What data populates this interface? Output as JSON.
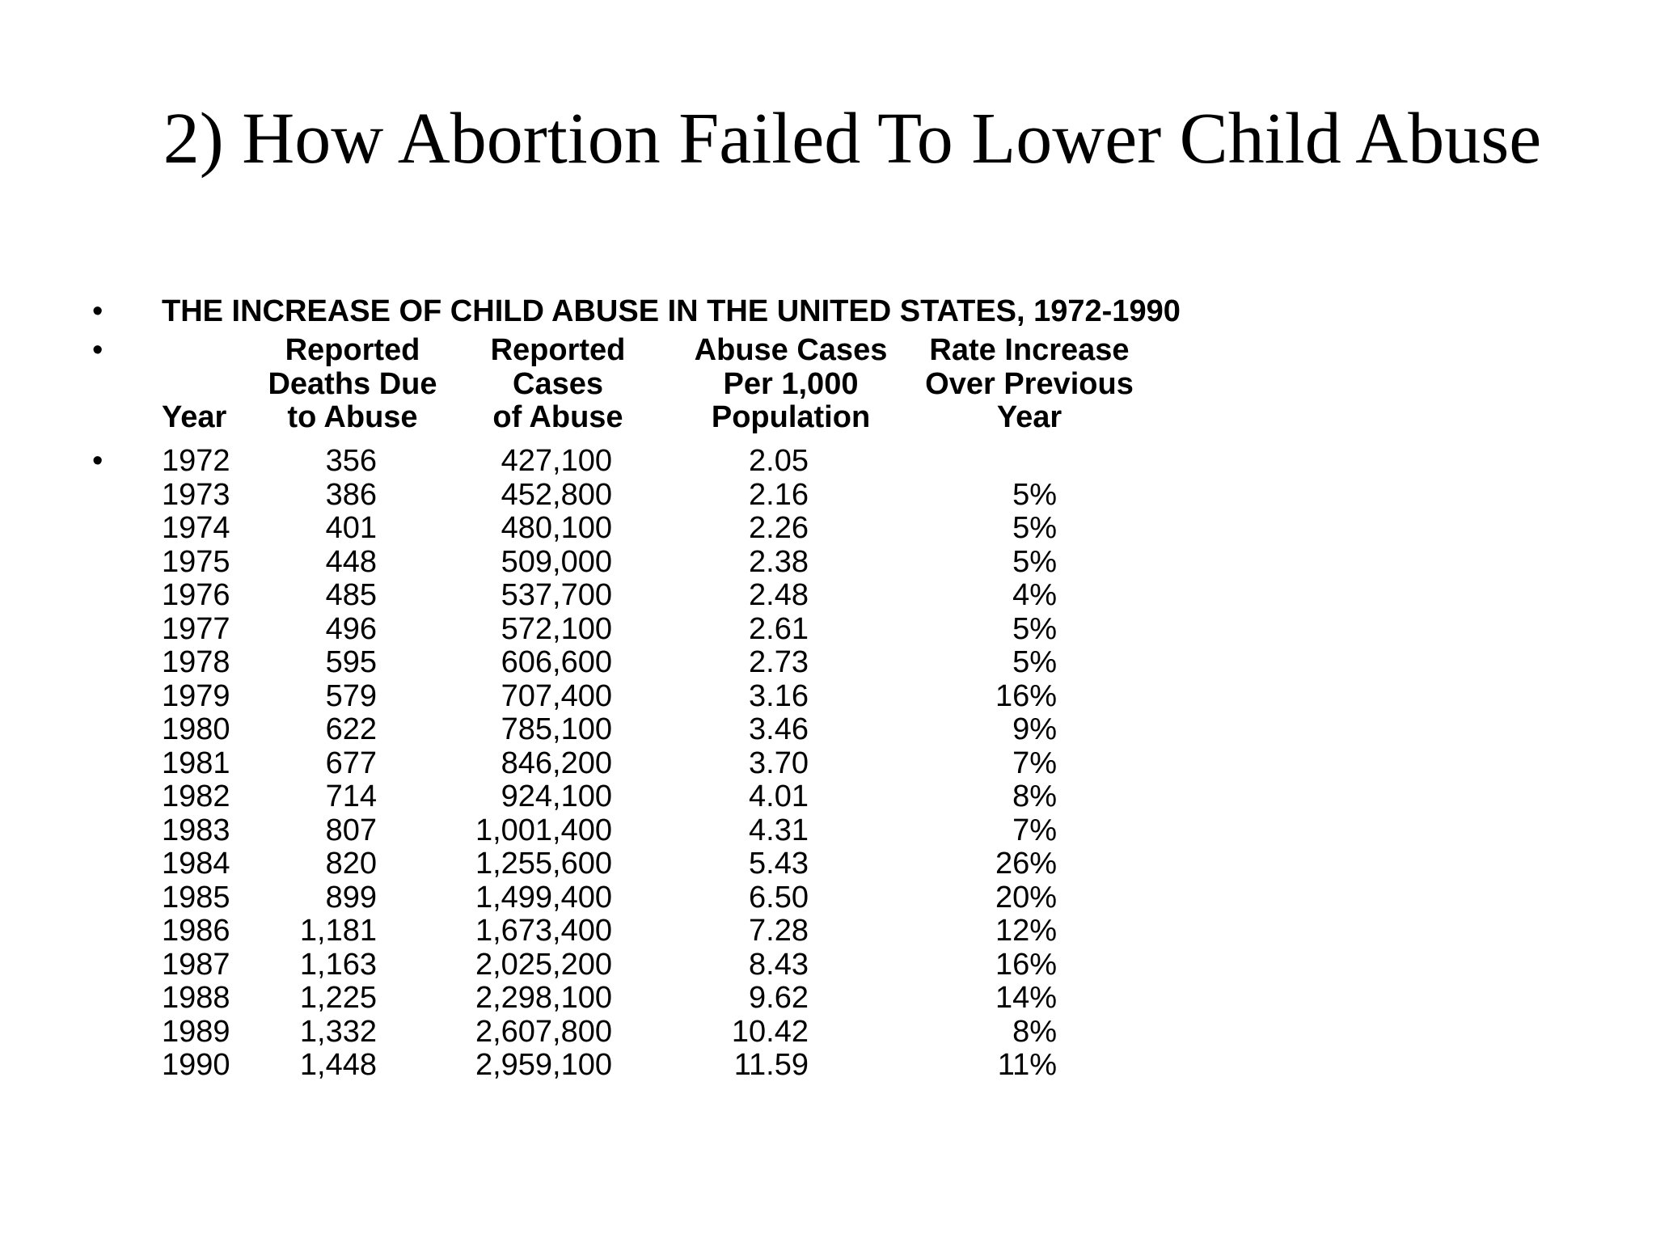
{
  "title": "2) How Abortion Failed To Lower Child Abuse",
  "bullet_char": "•",
  "table": {
    "heading": "THE INCREASE OF CHILD ABUSE IN THE UNITED STATES, 1972-1990",
    "column_headers": {
      "year": "Year",
      "deaths": {
        "line1": "Reported",
        "line2": "Deaths Due",
        "line3": "to Abuse"
      },
      "cases": {
        "line1": "Reported",
        "line2": "Cases",
        "line3": "of Abuse"
      },
      "per_1000": {
        "line1": "Abuse Cases",
        "line2": "Per 1,000",
        "line3": "Population"
      },
      "rate": {
        "line1": "Rate Increase",
        "line2": "Over Previous",
        "line3": "Year"
      }
    },
    "rows": [
      [
        "1972",
        "356",
        "427,100",
        "2.05",
        ""
      ],
      [
        "1973",
        "386",
        "452,800",
        "2.16",
        "5%"
      ],
      [
        "1974",
        "401",
        "480,100",
        "2.26",
        "5%"
      ],
      [
        "1975",
        "448",
        "509,000",
        "2.38",
        "5%"
      ],
      [
        "1976",
        "485",
        "537,700",
        "2.48",
        "4%"
      ],
      [
        "1977",
        "496",
        "572,100",
        "2.61",
        "5%"
      ],
      [
        "1978",
        "595",
        "606,600",
        "2.73",
        "5%"
      ],
      [
        "1979",
        "579",
        "707,400",
        "3.16",
        "16%"
      ],
      [
        "1980",
        "622",
        "785,100",
        "3.46",
        "9%"
      ],
      [
        "1981",
        "677",
        "846,200",
        "3.70",
        "7%"
      ],
      [
        "1982",
        "714",
        "924,100",
        "4.01",
        "8%"
      ],
      [
        "1983",
        "807",
        "1,001,400",
        "4.31",
        "7%"
      ],
      [
        "1984",
        "820",
        "1,255,600",
        "5.43",
        "26%"
      ],
      [
        "1985",
        "899",
        "1,499,400",
        "6.50",
        "20%"
      ],
      [
        "1986",
        "1,181",
        "1,673,400",
        "7.28",
        "12%"
      ],
      [
        "1987",
        "1,163",
        "2,025,200",
        "8.43",
        "16%"
      ],
      [
        "1988",
        "1,225",
        "2,298,100",
        "9.62",
        "14%"
      ],
      [
        "1989",
        "1,332",
        "2,607,800",
        "10.42",
        "8%"
      ],
      [
        "1990",
        "1,448",
        "2,959,100",
        "11.59",
        "11%"
      ]
    ]
  }
}
